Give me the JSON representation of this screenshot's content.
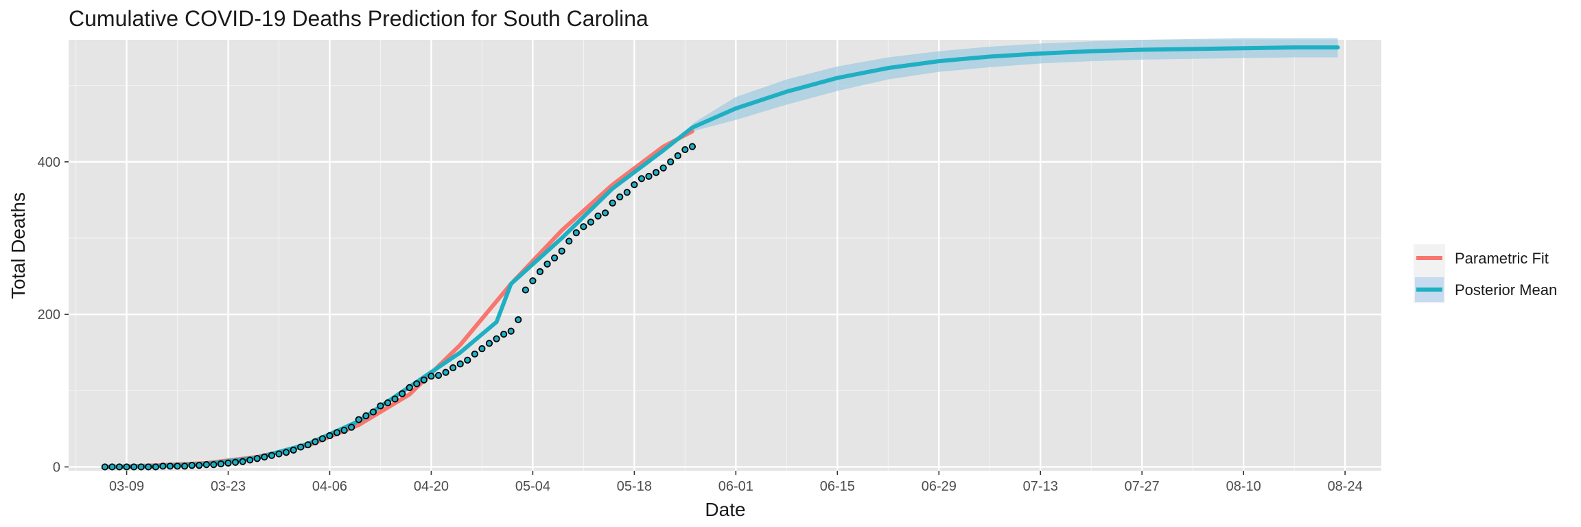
{
  "chart_data": {
    "type": "line",
    "title": "Cumulative COVID-19 Deaths Prediction for South Carolina",
    "xlabel": "Date",
    "ylabel": "Total Deaths",
    "x_axis_type": "date",
    "xlim": [
      "2020-03-01",
      "2020-08-29"
    ],
    "ylim": [
      -5,
      560
    ],
    "x_tick_labels": [
      "03-09",
      "03-23",
      "04-06",
      "04-20",
      "05-04",
      "05-18",
      "06-01",
      "06-15",
      "06-29",
      "07-13",
      "07-27",
      "08-10",
      "08-24"
    ],
    "x_tick_values": [
      "2020-03-09",
      "2020-03-23",
      "2020-04-06",
      "2020-04-20",
      "2020-05-04",
      "2020-05-18",
      "2020-06-01",
      "2020-06-15",
      "2020-06-29",
      "2020-07-13",
      "2020-07-27",
      "2020-08-10",
      "2020-08-24"
    ],
    "y_ticks": [
      0,
      200,
      400
    ],
    "grid": true,
    "legend_position": "right",
    "legend": [
      {
        "name": "Parametric Fit",
        "color": "#F8766D"
      },
      {
        "name": "Posterior Mean",
        "color": "#1FAFC3"
      }
    ],
    "series": [
      {
        "name": "Parametric Fit",
        "type": "line",
        "color": "#F8766D",
        "x": [
          "2020-03-06",
          "2020-03-13",
          "2020-03-20",
          "2020-03-27",
          "2020-04-03",
          "2020-04-10",
          "2020-04-17",
          "2020-04-24",
          "2020-05-01",
          "2020-05-08",
          "2020-05-15",
          "2020-05-22",
          "2020-05-26"
        ],
        "y": [
          0,
          2,
          5,
          13,
          28,
          55,
          95,
          160,
          240,
          310,
          370,
          420,
          440
        ]
      },
      {
        "name": "Posterior Mean",
        "type": "line",
        "color": "#1FAFC3",
        "x": [
          "2020-03-06",
          "2020-03-13",
          "2020-03-20",
          "2020-03-27",
          "2020-04-03",
          "2020-04-10",
          "2020-04-17",
          "2020-04-24",
          "2020-04-29",
          "2020-05-01",
          "2020-05-08",
          "2020-05-15",
          "2020-05-22",
          "2020-05-26",
          "2020-06-01",
          "2020-06-08",
          "2020-06-15",
          "2020-06-22",
          "2020-06-29",
          "2020-07-06",
          "2020-07-13",
          "2020-07-20",
          "2020-07-27",
          "2020-08-03",
          "2020-08-10",
          "2020-08-17",
          "2020-08-23"
        ],
        "y": [
          0,
          1,
          4,
          12,
          30,
          60,
          105,
          150,
          190,
          240,
          300,
          365,
          415,
          445,
          470,
          492,
          510,
          523,
          532,
          538,
          542,
          545,
          547,
          548,
          549,
          550,
          550
        ]
      },
      {
        "name": "Posterior Band",
        "type": "area",
        "color": "#9ECAE1",
        "x": [
          "2020-05-26",
          "2020-06-01",
          "2020-06-08",
          "2020-06-15",
          "2020-06-22",
          "2020-06-29",
          "2020-07-06",
          "2020-07-13",
          "2020-07-20",
          "2020-07-27",
          "2020-08-03",
          "2020-08-10",
          "2020-08-17",
          "2020-08-23"
        ],
        "upper": [
          450,
          485,
          508,
          525,
          537,
          545,
          551,
          555,
          558,
          560,
          561,
          562,
          562,
          562
        ],
        "lower": [
          440,
          455,
          475,
          493,
          508,
          518,
          524,
          529,
          532,
          534,
          535,
          536,
          537,
          537
        ]
      },
      {
        "name": "Observed",
        "type": "scatter",
        "color": "#1FAFC3",
        "x": [
          "2020-03-06",
          "2020-03-07",
          "2020-03-08",
          "2020-03-09",
          "2020-03-10",
          "2020-03-11",
          "2020-03-12",
          "2020-03-13",
          "2020-03-14",
          "2020-03-15",
          "2020-03-16",
          "2020-03-17",
          "2020-03-18",
          "2020-03-19",
          "2020-03-20",
          "2020-03-21",
          "2020-03-22",
          "2020-03-23",
          "2020-03-24",
          "2020-03-25",
          "2020-03-26",
          "2020-03-27",
          "2020-03-28",
          "2020-03-29",
          "2020-03-30",
          "2020-03-31",
          "2020-04-01",
          "2020-04-02",
          "2020-04-03",
          "2020-04-04",
          "2020-04-05",
          "2020-04-06",
          "2020-04-07",
          "2020-04-08",
          "2020-04-09",
          "2020-04-10",
          "2020-04-11",
          "2020-04-12",
          "2020-04-13",
          "2020-04-14",
          "2020-04-15",
          "2020-04-16",
          "2020-04-17",
          "2020-04-18",
          "2020-04-19",
          "2020-04-20",
          "2020-04-21",
          "2020-04-22",
          "2020-04-23",
          "2020-04-24",
          "2020-04-25",
          "2020-04-26",
          "2020-04-27",
          "2020-04-28",
          "2020-04-29",
          "2020-04-30",
          "2020-05-01",
          "2020-05-02",
          "2020-05-03",
          "2020-05-04",
          "2020-05-05",
          "2020-05-06",
          "2020-05-07",
          "2020-05-08",
          "2020-05-09",
          "2020-05-10",
          "2020-05-11",
          "2020-05-12",
          "2020-05-13",
          "2020-05-14",
          "2020-05-15",
          "2020-05-16",
          "2020-05-17",
          "2020-05-18",
          "2020-05-19",
          "2020-05-20",
          "2020-05-21",
          "2020-05-22",
          "2020-05-23",
          "2020-05-24",
          "2020-05-25",
          "2020-05-26"
        ],
        "y": [
          0,
          0,
          0,
          0,
          0,
          0,
          0,
          0,
          1,
          1,
          1,
          1,
          2,
          2,
          3,
          3,
          4,
          5,
          6,
          7,
          9,
          11,
          13,
          15,
          17,
          19,
          22,
          26,
          29,
          33,
          37,
          41,
          45,
          48,
          52,
          62,
          67,
          72,
          80,
          84,
          89,
          96,
          104,
          109,
          114,
          119,
          120,
          124,
          130,
          135,
          140,
          148,
          155,
          162,
          168,
          174,
          178,
          193,
          232,
          244,
          256,
          266,
          274,
          283,
          296,
          307,
          315,
          321,
          329,
          333,
          346,
          354,
          360,
          370,
          378,
          381,
          386,
          392,
          400,
          408,
          416,
          420
        ]
      }
    ]
  }
}
